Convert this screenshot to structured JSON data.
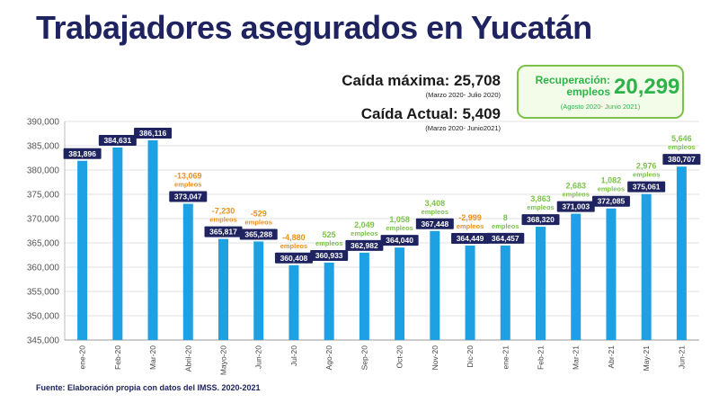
{
  "title": "Trabajadores asegurados en Yucatán",
  "stats": {
    "max_drop_label": "Caída máxima: 25,708",
    "max_drop_period": "(Marzo 2020- Julio 2020)",
    "current_drop_label": "Caída Actual: 5,409",
    "current_drop_period": "(Marzo 2020- Junio2021)"
  },
  "recovery": {
    "label": "Recuperación: empleos",
    "value": "20,299",
    "period": "(Agosto 2020- Junio 2021)"
  },
  "source": "Fuente: Elaboración propia con datos del IMSS. 2020-2021",
  "colors": {
    "title": "#1f2460",
    "bar": "#1da1e2",
    "label_bg": "#1f2460",
    "negative": "#e8901e",
    "positive": "#7cc24a"
  },
  "chart_data": {
    "type": "bar",
    "categories": [
      "ene-20",
      "Feb-20",
      "Mar-20",
      "Abril-20",
      "Mayo-20",
      "Jun-20",
      "Jul-20",
      "Ago-20",
      "Sep-20",
      "Oct-20",
      "Nov-20",
      "Dic-20",
      "ene-21",
      "Feb-21",
      "Mar-21",
      "Abr-21",
      "May-21",
      "Jun-21"
    ],
    "values": [
      381896,
      384631,
      386116,
      373047,
      365817,
      365288,
      360408,
      360933,
      362982,
      364040,
      367448,
      364449,
      364457,
      368320,
      371003,
      372085,
      375061,
      380707
    ],
    "value_labels": [
      "381,896",
      "384,631",
      "386,116",
      "373,047",
      "365,817",
      "365,288",
      "360,408",
      "360,933",
      "362,982",
      "364,040",
      "367,448",
      "364,449",
      "364,457",
      "368,320",
      "371,003",
      "372,085",
      "375,061",
      "380,707"
    ],
    "change_labels": [
      "",
      "",
      "",
      "-13,069",
      "-7,230",
      "-529",
      "-4,880",
      "525",
      "2,049",
      "1,058",
      "3,408",
      "-2,999",
      "8",
      "3,863",
      "2,683",
      "1,082",
      "2,976",
      "5,646"
    ],
    "change_unit": "empleos",
    "yticks": [
      "390,000",
      "385,000",
      "380,000",
      "375,000",
      "370,000",
      "365,000",
      "360,000",
      "355,000",
      "350,000",
      "345,000"
    ],
    "ylim": [
      345000,
      390000
    ],
    "grid": true
  }
}
